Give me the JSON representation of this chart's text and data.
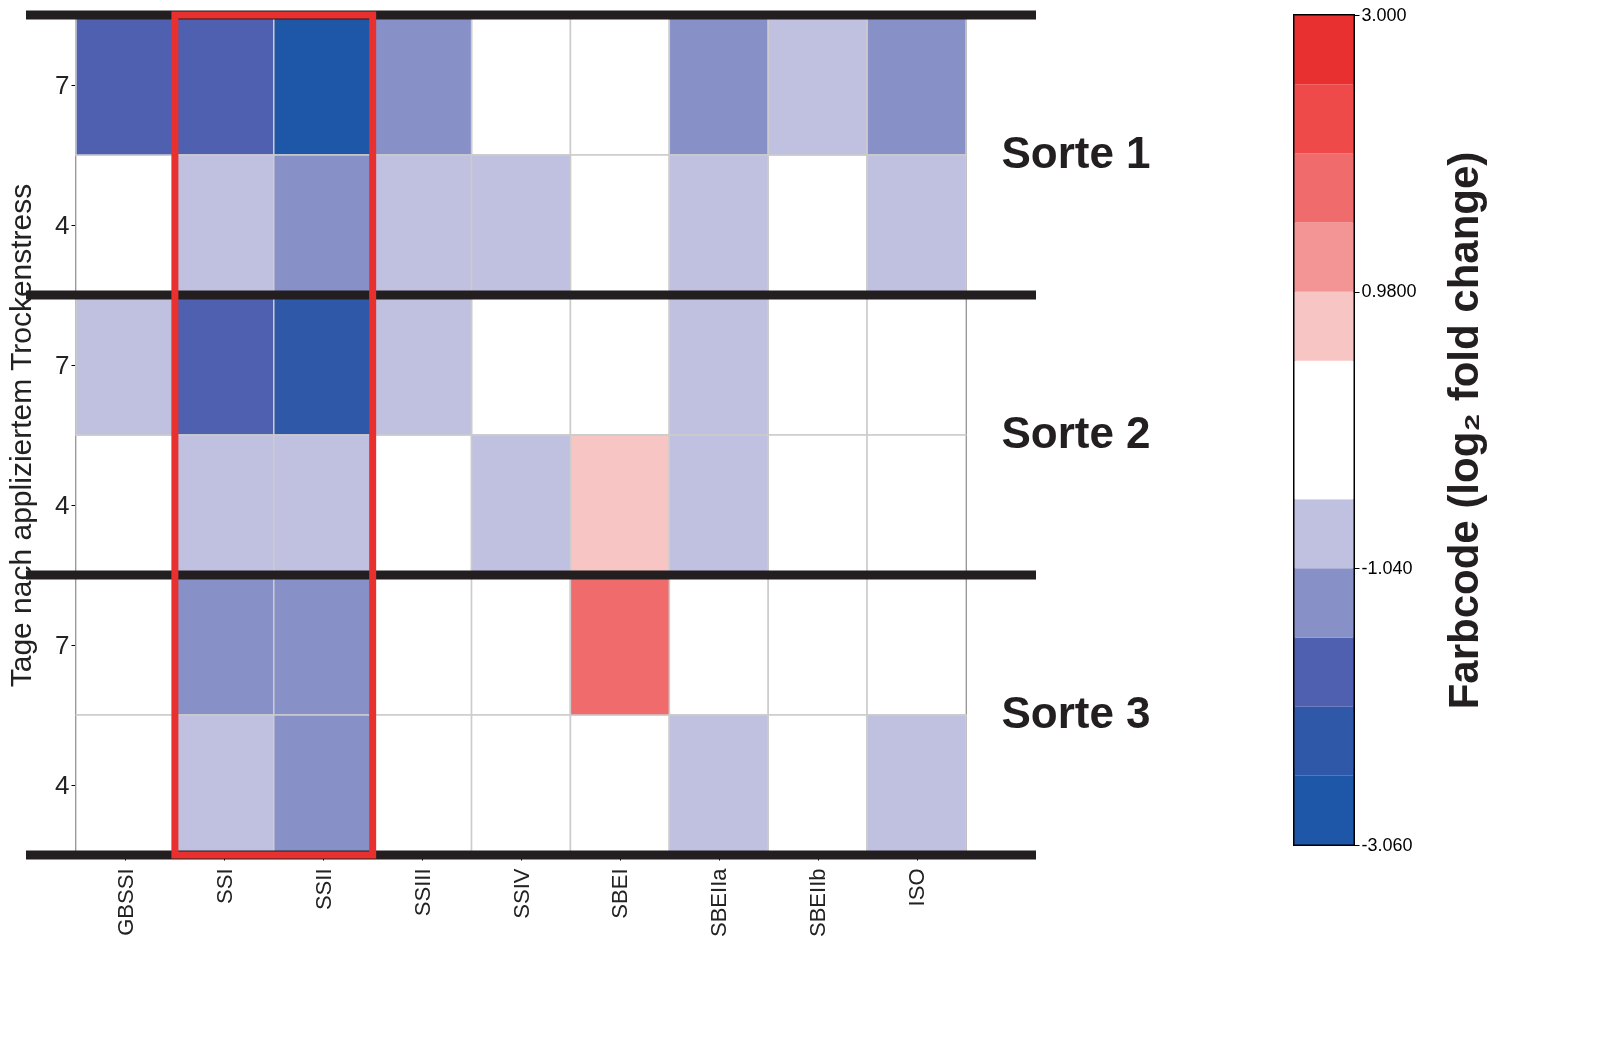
{
  "chart_data": {
    "type": "heatmap",
    "ylabel": "Tage nach appliziertem Trockenstress",
    "clabel": "Farbcode (log₂ fold change)",
    "categories": [
      "GBSSI",
      "SSI",
      "SSII",
      "SSIII",
      "SSIV",
      "SBEI",
      "SBEIIa",
      "SBEIIb",
      "ISO"
    ],
    "y_categories": [
      "7",
      "4",
      "7",
      "4",
      "7",
      "4"
    ],
    "cells": [
      [
        -1.8,
        -1.8,
        -2.81,
        -1.29,
        null,
        null,
        -1.29,
        -0.79,
        -1.29
      ],
      [
        null,
        -0.79,
        -1.29,
        -0.79,
        -0.79,
        null,
        -0.79,
        null,
        -0.79
      ],
      [
        -0.79,
        -1.8,
        -2.3,
        -0.79,
        null,
        null,
        -0.79,
        null,
        null
      ],
      [
        null,
        -0.79,
        -0.79,
        null,
        -0.79,
        0.73,
        -0.79,
        null,
        null
      ],
      [
        null,
        -1.29,
        -1.29,
        null,
        null,
        1.74,
        null,
        null,
        null
      ],
      [
        null,
        -0.79,
        -1.29,
        null,
        null,
        null,
        -0.79,
        null,
        -0.79
      ]
    ],
    "clim": [
      -3.06,
      3.0
    ],
    "cticks": [
      {
        "value": -3.06,
        "label": "-3.060"
      },
      {
        "value": -1.04,
        "label": "-1.040"
      },
      {
        "value": 0.98,
        "label": "0.9800"
      },
      {
        "value": 3.0,
        "label": "3.000"
      }
    ],
    "annotations": [
      "Sorte 1",
      "Sorte 2",
      "Sorte 3"
    ]
  }
}
